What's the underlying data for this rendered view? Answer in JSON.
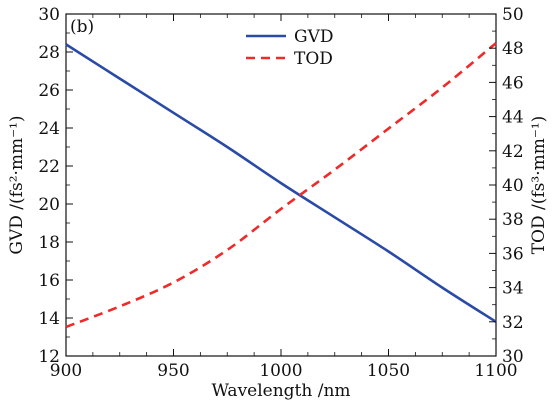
{
  "chart_data": {
    "type": "line",
    "panel_label": "(b)",
    "xlabel": "Wavelength /nm",
    "ylabel_left": "GVD /(fs²·mm⁻¹)",
    "ylabel_right": "TOD /(fs³·mm⁻¹)",
    "xlim": [
      900,
      1100
    ],
    "ylim_left": [
      12,
      30
    ],
    "ylim_right": [
      30,
      50
    ],
    "x_ticks": [
      900,
      950,
      1000,
      1050,
      1100
    ],
    "y_ticks_left": [
      12,
      14,
      16,
      18,
      20,
      22,
      24,
      26,
      28,
      30
    ],
    "y_ticks_right": [
      30,
      32,
      34,
      36,
      38,
      40,
      42,
      44,
      46,
      48,
      50
    ],
    "grid": false,
    "legend_position": "top-center",
    "series": [
      {
        "name": "GVD",
        "axis": "left",
        "color": "#2a4aa8",
        "style": "solid",
        "x": [
          900,
          925,
          950,
          975,
          1000,
          1025,
          1050,
          1075,
          1100
        ],
        "values": [
          28.4,
          26.6,
          24.8,
          23.0,
          21.1,
          19.3,
          17.5,
          15.6,
          13.8
        ]
      },
      {
        "name": "TOD",
        "axis": "right",
        "color": "#ee2a2a",
        "style": "dashed",
        "x": [
          900,
          925,
          950,
          975,
          1000,
          1025,
          1050,
          1075,
          1100
        ],
        "values": [
          31.7,
          32.9,
          34.3,
          36.2,
          38.6,
          40.9,
          43.3,
          45.7,
          48.3
        ]
      }
    ]
  }
}
